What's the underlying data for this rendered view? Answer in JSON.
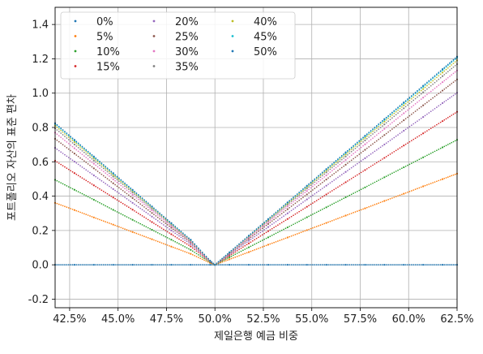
{
  "chart_data": {
    "type": "scatter",
    "title": "",
    "xlabel": "제일은행 예금 비중",
    "ylabel": "포트폴리오 자산의 표준 편차",
    "x_format": "percent",
    "xlim": [
      0.4175,
      0.625
    ],
    "ylim": [
      -0.25,
      1.5
    ],
    "xticks": [
      0.425,
      0.45,
      0.475,
      0.5,
      0.525,
      0.55,
      0.575,
      0.6,
      0.625
    ],
    "xtick_labels": [
      "42.5%",
      "45.0%",
      "47.5%",
      "50.0%",
      "52.5%",
      "55.0%",
      "57.5%",
      "60.0%",
      "62.5%"
    ],
    "yticks": [
      -0.2,
      0.0,
      0.2,
      0.4,
      0.6,
      0.8,
      1.0,
      1.2,
      1.4
    ],
    "ytick_labels": [
      "-0.2",
      "0.0",
      "0.2",
      "0.4",
      "0.6",
      "0.8",
      "1.0",
      "1.2",
      "1.4"
    ],
    "grid": true,
    "legend_position": "top-left",
    "legend_columns": 3,
    "x": [
      0.4175,
      0.4275,
      0.4375,
      0.4475,
      0.4575,
      0.4675,
      0.4775,
      0.4875,
      0.4975,
      0.5,
      0.5075,
      0.5175,
      0.5275,
      0.5375,
      0.5475,
      0.5575,
      0.5675,
      0.5775,
      0.5875,
      0.5975,
      0.6075,
      0.6175,
      0.625
    ],
    "series": [
      {
        "name": "0%",
        "color": "#1f77b4",
        "values": [
          0,
          0,
          0,
          0,
          0,
          0,
          0,
          0,
          0,
          0,
          0,
          0,
          0,
          0,
          0,
          0,
          0,
          0,
          0,
          0,
          0,
          0,
          0
        ]
      },
      {
        "name": "5%",
        "color": "#ff7f0e",
        "values": [
          0.361,
          0.319,
          0.276,
          0.234,
          0.191,
          0.149,
          0.106,
          0.064,
          0.011,
          0,
          0.032,
          0.074,
          0.117,
          0.159,
          0.202,
          0.244,
          0.287,
          0.329,
          0.372,
          0.414,
          0.457,
          0.499,
          0.531
        ]
      },
      {
        "name": "10%",
        "color": "#2ca02c",
        "values": [
          0.495,
          0.437,
          0.379,
          0.32,
          0.262,
          0.204,
          0.146,
          0.087,
          0.015,
          0,
          0.044,
          0.102,
          0.16,
          0.218,
          0.277,
          0.335,
          0.393,
          0.451,
          0.51,
          0.568,
          0.626,
          0.684,
          0.728
        ]
      },
      {
        "name": "15%",
        "color": "#d62728",
        "values": [
          0.606,
          0.534,
          0.463,
          0.392,
          0.321,
          0.249,
          0.178,
          0.107,
          0.018,
          0,
          0.053,
          0.125,
          0.196,
          0.267,
          0.338,
          0.41,
          0.481,
          0.552,
          0.623,
          0.695,
          0.766,
          0.837,
          0.891
        ]
      },
      {
        "name": "20%",
        "color": "#9467bd",
        "values": [
          0.681,
          0.601,
          0.521,
          0.441,
          0.361,
          0.281,
          0.2,
          0.12,
          0.02,
          0,
          0.06,
          0.14,
          0.22,
          0.3,
          0.381,
          0.461,
          0.541,
          0.621,
          0.701,
          0.781,
          0.861,
          0.942,
          1.002
        ]
      },
      {
        "name": "25%",
        "color": "#8c564b",
        "values": [
          0.734,
          0.648,
          0.562,
          0.475,
          0.389,
          0.302,
          0.216,
          0.13,
          0.022,
          0,
          0.065,
          0.151,
          0.238,
          0.324,
          0.41,
          0.497,
          0.583,
          0.67,
          0.756,
          0.842,
          0.929,
          1.015,
          1.08
        ]
      },
      {
        "name": "30%",
        "color": "#e377c2",
        "values": [
          0.77,
          0.679,
          0.589,
          0.498,
          0.408,
          0.317,
          0.226,
          0.136,
          0.023,
          0,
          0.068,
          0.158,
          0.249,
          0.34,
          0.43,
          0.521,
          0.611,
          0.702,
          0.792,
          0.883,
          0.974,
          1.064,
          1.132
        ]
      },
      {
        "name": "35%",
        "color": "#7f7f7f",
        "values": [
          0.795,
          0.701,
          0.608,
          0.514,
          0.421,
          0.327,
          0.234,
          0.14,
          0.023,
          0,
          0.07,
          0.164,
          0.257,
          0.351,
          0.444,
          0.538,
          0.631,
          0.725,
          0.818,
          0.912,
          1.005,
          1.099,
          1.169
        ]
      },
      {
        "name": "40%",
        "color": "#bcbd22",
        "values": [
          0.81,
          0.715,
          0.62,
          0.524,
          0.429,
          0.334,
          0.238,
          0.143,
          0.024,
          0,
          0.071,
          0.167,
          0.262,
          0.357,
          0.453,
          0.548,
          0.643,
          0.739,
          0.834,
          0.929,
          1.024,
          1.12,
          1.191
        ]
      },
      {
        "name": "45%",
        "color": "#17becf",
        "values": [
          0.82,
          0.724,
          0.627,
          0.531,
          0.434,
          0.338,
          0.241,
          0.145,
          0.024,
          0,
          0.072,
          0.169,
          0.265,
          0.362,
          0.458,
          0.555,
          0.651,
          0.748,
          0.844,
          0.941,
          1.037,
          1.134,
          1.206
        ]
      },
      {
        "name": "50%",
        "color": "#1f77b4",
        "values": [
          0.825,
          0.728,
          0.631,
          0.534,
          0.437,
          0.34,
          0.243,
          0.146,
          0.024,
          0,
          0.073,
          0.17,
          0.267,
          0.364,
          0.461,
          0.558,
          0.655,
          0.752,
          0.849,
          0.946,
          1.043,
          1.14,
          1.213
        ]
      }
    ]
  }
}
